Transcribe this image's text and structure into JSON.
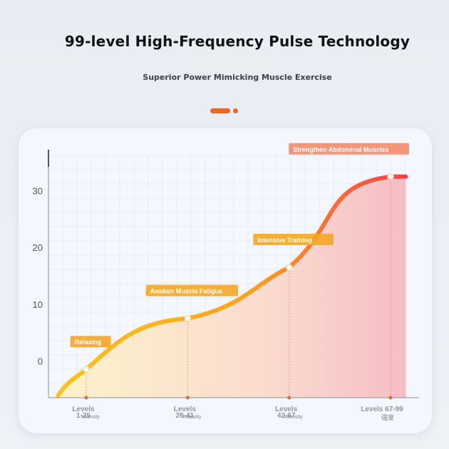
{
  "header": {
    "title": "99-level High-Frequency Pulse Technology",
    "subtitle": "Superior Power Mimicking Muscle Exercise"
  },
  "theme": {
    "accent": "#e8672a",
    "curve_start": "#ffc21a",
    "curve_end": "#ff3d4a",
    "tag_fill": "#f7a623",
    "grid": "#dfe8f5",
    "axis": "#8a8f99"
  },
  "chart_data": {
    "type": "area",
    "title": "99-level High-Frequency Pulse Technology",
    "subtitle": "Superior Power Mimicking Muscle Exercise",
    "xlabel": "",
    "ylabel": "",
    "y_ticks": [
      0,
      10,
      20,
      30
    ],
    "ylim": [
      -6.5,
      37
    ],
    "xlim": [
      0,
      4.5
    ],
    "grid": true,
    "categories": [
      {
        "line1": "Levels",
        "line2": "1-25",
        "sub": "Intensity"
      },
      {
        "line1": "Levels",
        "line2": "26-41",
        "sub": "Intensity"
      },
      {
        "line1": "Levels",
        "line2": "42-67",
        "sub": "Intensity"
      },
      {
        "line1": "Levels 67-99",
        "line2": "",
        "sub": "强度"
      }
    ],
    "points": [
      {
        "x": 1,
        "y": -1.5,
        "tag": "Relaxing"
      },
      {
        "x": 2,
        "y": 7.5,
        "tag": "Awaken Muscle Fatigue"
      },
      {
        "x": 3,
        "y": 16.5,
        "tag": "Intensive Training"
      },
      {
        "x": 4,
        "y": 32.5,
        "tag": "Strengthen Abdominal Muscles"
      }
    ]
  }
}
